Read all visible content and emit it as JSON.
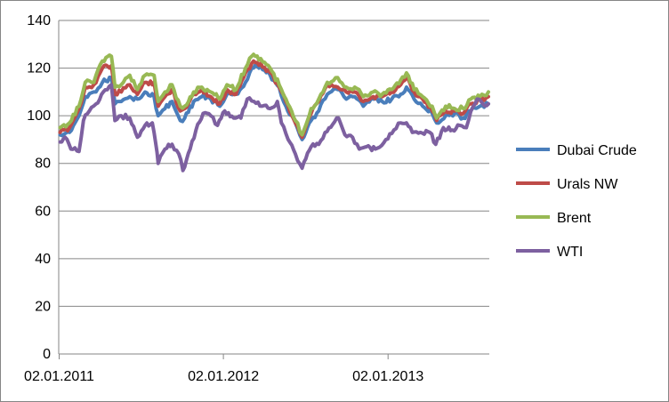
{
  "chart_data": {
    "type": "line",
    "title": "",
    "xlabel": "",
    "ylabel": "",
    "xlim": [
      "2011-01-01",
      "2013-08-15"
    ],
    "ylim": [
      0,
      140
    ],
    "y_ticks": [
      0,
      20,
      40,
      60,
      80,
      100,
      120,
      140
    ],
    "x_ticks": [
      {
        "date": "2011-01-02",
        "label": "02.01.2011"
      },
      {
        "date": "2012-01-02",
        "label": "02.01.2012"
      },
      {
        "date": "2013-01-02",
        "label": "02.01.2013"
      }
    ],
    "grid": "horizontal",
    "legend_position": "right",
    "series": [
      {
        "name": "Dubai Crude",
        "color": "#4a7ebb",
        "points": [
          [
            "2011-01-04",
            92
          ],
          [
            "2011-01-25",
            93
          ],
          [
            "2011-02-15",
            100
          ],
          [
            "2011-03-01",
            108
          ],
          [
            "2011-03-20",
            110
          ],
          [
            "2011-04-08",
            114
          ],
          [
            "2011-04-28",
            116
          ],
          [
            "2011-05-06",
            105
          ],
          [
            "2011-05-20",
            106
          ],
          [
            "2011-06-08",
            108
          ],
          [
            "2011-06-25",
            107
          ],
          [
            "2011-07-12",
            110
          ],
          [
            "2011-08-01",
            108
          ],
          [
            "2011-08-10",
            100
          ],
          [
            "2011-08-25",
            103
          ],
          [
            "2011-09-10",
            106
          ],
          [
            "2011-09-28",
            98
          ],
          [
            "2011-10-08",
            99
          ],
          [
            "2011-10-28",
            106
          ],
          [
            "2011-11-15",
            108
          ],
          [
            "2011-12-05",
            107
          ],
          [
            "2011-12-25",
            104
          ],
          [
            "2012-01-10",
            109
          ],
          [
            "2012-01-30",
            109
          ],
          [
            "2012-02-20",
            114
          ],
          [
            "2012-03-05",
            120
          ],
          [
            "2012-03-25",
            121
          ],
          [
            "2012-04-15",
            117
          ],
          [
            "2012-05-05",
            112
          ],
          [
            "2012-05-20",
            104
          ],
          [
            "2012-06-10",
            97
          ],
          [
            "2012-06-25",
            90
          ],
          [
            "2012-07-15",
            98
          ],
          [
            "2012-08-01",
            102
          ],
          [
            "2012-08-20",
            109
          ],
          [
            "2012-09-12",
            111
          ],
          [
            "2012-10-01",
            107
          ],
          [
            "2012-10-20",
            108
          ],
          [
            "2012-11-08",
            104
          ],
          [
            "2012-11-30",
            107
          ],
          [
            "2012-12-20",
            106
          ],
          [
            "2013-01-10",
            107
          ],
          [
            "2013-01-30",
            109
          ],
          [
            "2013-02-12",
            112
          ],
          [
            "2013-03-01",
            107
          ],
          [
            "2013-03-20",
            104
          ],
          [
            "2013-04-10",
            101
          ],
          [
            "2013-04-20",
            97
          ],
          [
            "2013-05-10",
            100
          ],
          [
            "2013-05-30",
            101
          ],
          [
            "2013-06-18",
            99
          ],
          [
            "2013-07-05",
            102
          ],
          [
            "2013-07-25",
            104
          ],
          [
            "2013-08-13",
            105
          ]
        ]
      },
      {
        "name": "Urals NW",
        "color": "#be4b48",
        "points": [
          [
            "2011-01-04",
            93
          ],
          [
            "2011-01-25",
            95
          ],
          [
            "2011-02-15",
            103
          ],
          [
            "2011-03-01",
            112
          ],
          [
            "2011-03-20",
            113
          ],
          [
            "2011-04-08",
            120
          ],
          [
            "2011-04-28",
            121
          ],
          [
            "2011-05-06",
            109
          ],
          [
            "2011-05-20",
            110
          ],
          [
            "2011-06-08",
            113
          ],
          [
            "2011-06-25",
            109
          ],
          [
            "2011-07-12",
            114
          ],
          [
            "2011-08-01",
            114
          ],
          [
            "2011-08-10",
            104
          ],
          [
            "2011-08-25",
            108
          ],
          [
            "2011-09-10",
            111
          ],
          [
            "2011-09-28",
            102
          ],
          [
            "2011-10-08",
            103
          ],
          [
            "2011-10-28",
            109
          ],
          [
            "2011-11-15",
            111
          ],
          [
            "2011-12-05",
            108
          ],
          [
            "2011-12-25",
            105
          ],
          [
            "2012-01-10",
            111
          ],
          [
            "2012-01-30",
            109
          ],
          [
            "2012-02-20",
            118
          ],
          [
            "2012-03-05",
            122
          ],
          [
            "2012-03-25",
            122
          ],
          [
            "2012-04-15",
            118
          ],
          [
            "2012-05-05",
            112
          ],
          [
            "2012-05-20",
            106
          ],
          [
            "2012-06-10",
            97
          ],
          [
            "2012-06-25",
            91
          ],
          [
            "2012-07-15",
            101
          ],
          [
            "2012-08-01",
            106
          ],
          [
            "2012-08-20",
            113
          ],
          [
            "2012-09-12",
            112
          ],
          [
            "2012-10-01",
            110
          ],
          [
            "2012-10-20",
            110
          ],
          [
            "2012-11-08",
            106
          ],
          [
            "2012-11-30",
            108
          ],
          [
            "2012-12-20",
            108
          ],
          [
            "2013-01-10",
            110
          ],
          [
            "2013-01-30",
            113
          ],
          [
            "2013-02-12",
            116
          ],
          [
            "2013-03-01",
            110
          ],
          [
            "2013-03-20",
            107
          ],
          [
            "2013-04-10",
            102
          ],
          [
            "2013-04-20",
            98
          ],
          [
            "2013-05-10",
            102
          ],
          [
            "2013-05-30",
            102
          ],
          [
            "2013-06-18",
            101
          ],
          [
            "2013-07-05",
            105
          ],
          [
            "2013-07-25",
            107
          ],
          [
            "2013-08-13",
            108
          ]
        ]
      },
      {
        "name": "Brent",
        "color": "#98b954",
        "points": [
          [
            "2011-01-04",
            95
          ],
          [
            "2011-01-25",
            97
          ],
          [
            "2011-02-15",
            104
          ],
          [
            "2011-03-01",
            114
          ],
          [
            "2011-03-20",
            114
          ],
          [
            "2011-04-08",
            123
          ],
          [
            "2011-04-28",
            125
          ],
          [
            "2011-05-06",
            112
          ],
          [
            "2011-05-20",
            113
          ],
          [
            "2011-06-08",
            117
          ],
          [
            "2011-06-25",
            111
          ],
          [
            "2011-07-12",
            117
          ],
          [
            "2011-08-01",
            117
          ],
          [
            "2011-08-10",
            106
          ],
          [
            "2011-08-25",
            110
          ],
          [
            "2011-09-10",
            113
          ],
          [
            "2011-09-28",
            104
          ],
          [
            "2011-10-08",
            104
          ],
          [
            "2011-10-28",
            110
          ],
          [
            "2011-11-15",
            112
          ],
          [
            "2011-12-05",
            110
          ],
          [
            "2011-12-25",
            107
          ],
          [
            "2012-01-10",
            113
          ],
          [
            "2012-01-30",
            111
          ],
          [
            "2012-02-20",
            120
          ],
          [
            "2012-03-05",
            125
          ],
          [
            "2012-03-25",
            124
          ],
          [
            "2012-04-15",
            120
          ],
          [
            "2012-05-05",
            113
          ],
          [
            "2012-05-20",
            107
          ],
          [
            "2012-06-10",
            98
          ],
          [
            "2012-06-25",
            92
          ],
          [
            "2012-07-15",
            103
          ],
          [
            "2012-08-01",
            107
          ],
          [
            "2012-08-20",
            114
          ],
          [
            "2012-09-12",
            116
          ],
          [
            "2012-10-01",
            112
          ],
          [
            "2012-10-20",
            112
          ],
          [
            "2012-11-08",
            108
          ],
          [
            "2012-11-30",
            110
          ],
          [
            "2012-12-20",
            109
          ],
          [
            "2013-01-10",
            111
          ],
          [
            "2013-01-30",
            115
          ],
          [
            "2013-02-12",
            118
          ],
          [
            "2013-03-01",
            111
          ],
          [
            "2013-03-20",
            108
          ],
          [
            "2013-04-10",
            104
          ],
          [
            "2013-04-20",
            99
          ],
          [
            "2013-05-10",
            104
          ],
          [
            "2013-05-30",
            103
          ],
          [
            "2013-06-18",
            103
          ],
          [
            "2013-07-05",
            107
          ],
          [
            "2013-07-25",
            108
          ],
          [
            "2013-08-13",
            110
          ]
        ]
      },
      {
        "name": "WTI",
        "color": "#7d60a0",
        "points": [
          [
            "2011-01-04",
            89
          ],
          [
            "2011-01-15",
            91
          ],
          [
            "2011-01-28",
            86
          ],
          [
            "2011-02-15",
            85
          ],
          [
            "2011-02-25",
            98
          ],
          [
            "2011-03-10",
            102
          ],
          [
            "2011-03-25",
            105
          ],
          [
            "2011-04-10",
            110
          ],
          [
            "2011-04-28",
            113
          ],
          [
            "2011-05-06",
            98
          ],
          [
            "2011-05-20",
            100
          ],
          [
            "2011-06-08",
            99
          ],
          [
            "2011-06-25",
            91
          ],
          [
            "2011-07-12",
            96
          ],
          [
            "2011-07-28",
            97
          ],
          [
            "2011-08-05",
            88
          ],
          [
            "2011-08-10",
            80
          ],
          [
            "2011-08-25",
            86
          ],
          [
            "2011-09-10",
            88
          ],
          [
            "2011-09-25",
            84
          ],
          [
            "2011-10-04",
            77
          ],
          [
            "2011-10-20",
            86
          ],
          [
            "2011-11-02",
            94
          ],
          [
            "2011-11-18",
            101
          ],
          [
            "2011-12-05",
            100
          ],
          [
            "2011-12-20",
            96
          ],
          [
            "2012-01-05",
            102
          ],
          [
            "2012-01-25",
            99
          ],
          [
            "2012-02-10",
            99
          ],
          [
            "2012-02-24",
            107
          ],
          [
            "2012-03-10",
            106
          ],
          [
            "2012-03-28",
            104
          ],
          [
            "2012-04-15",
            103
          ],
          [
            "2012-05-01",
            106
          ],
          [
            "2012-05-10",
            97
          ],
          [
            "2012-05-25",
            90
          ],
          [
            "2012-06-10",
            84
          ],
          [
            "2012-06-25",
            78
          ],
          [
            "2012-07-15",
            87
          ],
          [
            "2012-08-01",
            88
          ],
          [
            "2012-08-15",
            93
          ],
          [
            "2012-09-14",
            99
          ],
          [
            "2012-09-28",
            92
          ],
          [
            "2012-10-15",
            91
          ],
          [
            "2012-10-30",
            86
          ],
          [
            "2012-11-15",
            87
          ],
          [
            "2012-12-05",
            86
          ],
          [
            "2012-12-28",
            90
          ],
          [
            "2013-01-15",
            94
          ],
          [
            "2013-01-30",
            97
          ],
          [
            "2013-02-12",
            97
          ],
          [
            "2013-02-25",
            93
          ],
          [
            "2013-03-15",
            93
          ],
          [
            "2013-04-05",
            93
          ],
          [
            "2013-04-18",
            88
          ],
          [
            "2013-05-05",
            95
          ],
          [
            "2013-05-25",
            94
          ],
          [
            "2013-06-10",
            96
          ],
          [
            "2013-06-25",
            95
          ],
          [
            "2013-07-05",
            102
          ],
          [
            "2013-07-19",
            107
          ],
          [
            "2013-08-01",
            105
          ],
          [
            "2013-08-13",
            105
          ]
        ]
      }
    ]
  }
}
